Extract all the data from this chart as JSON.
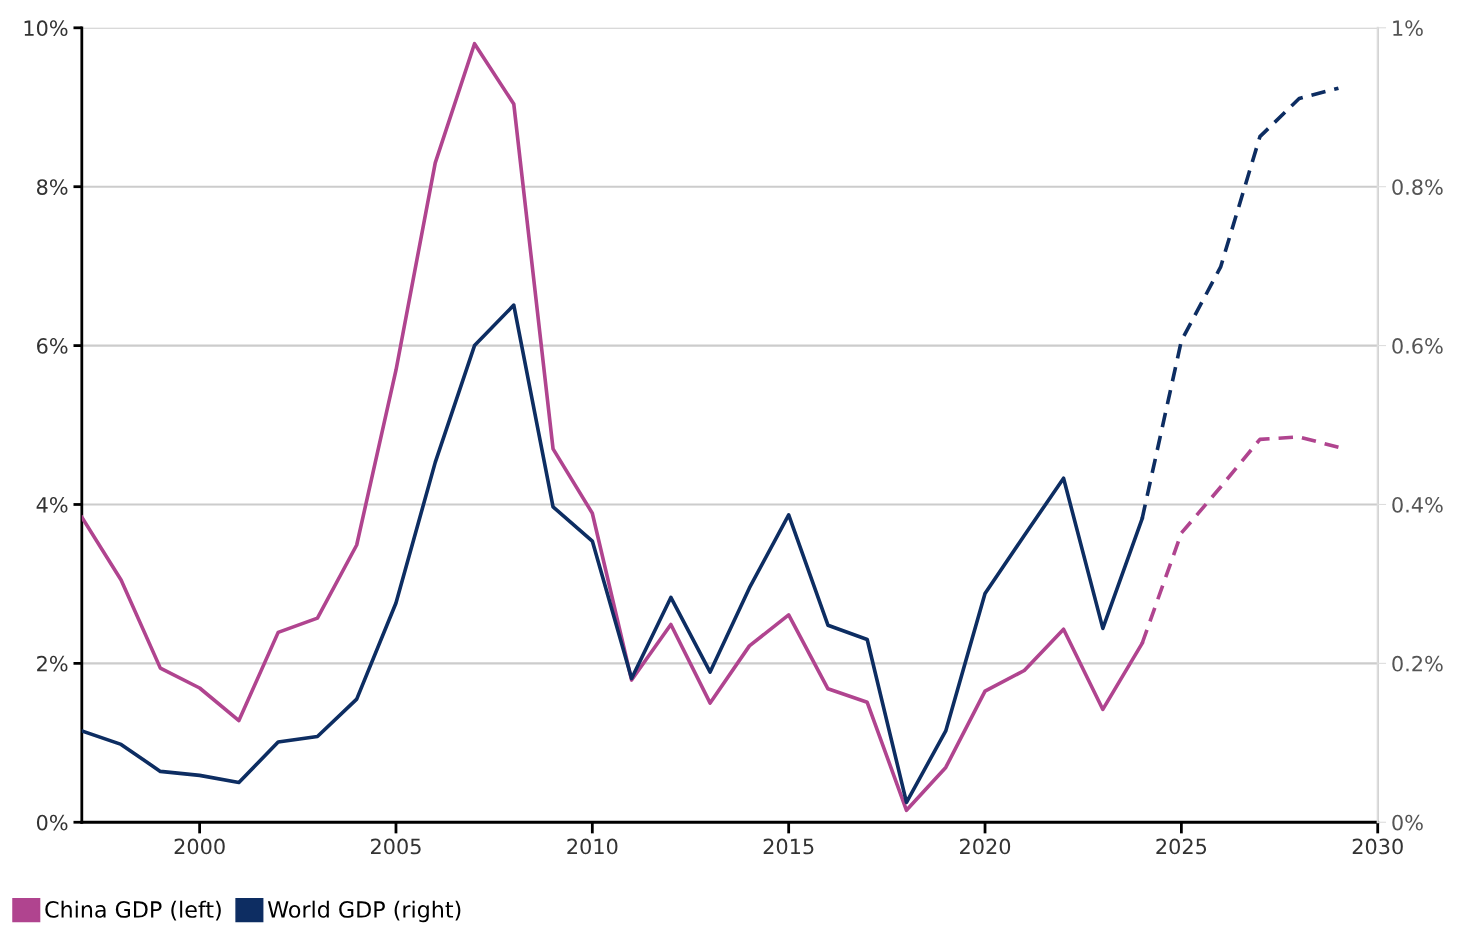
{
  "chart_data": {
    "type": "line",
    "xlim": [
      1997,
      2030
    ],
    "xticks": [
      2000,
      2005,
      2010,
      2015,
      2020,
      2025,
      2030
    ],
    "ylim": [
      0,
      10
    ],
    "yticks": [
      {
        "value": 0,
        "label": "0%"
      },
      {
        "value": 2,
        "label": "2%"
      },
      {
        "value": 4,
        "label": "4%"
      },
      {
        "value": 6,
        "label": "6%"
      },
      {
        "value": 8,
        "label": "8%"
      },
      {
        "value": 10,
        "label": "10%"
      }
    ],
    "y2lim": [
      0,
      1
    ],
    "y2ticks": [
      {
        "value": 0,
        "label": "0%"
      },
      {
        "value": 0.2,
        "label": "0.2%"
      },
      {
        "value": 0.4,
        "label": "0.4%"
      },
      {
        "value": 0.6,
        "label": "0.6%"
      },
      {
        "value": 0.8,
        "label": "0.8%"
      },
      {
        "value": 1,
        "label": "1%"
      }
    ],
    "grid": "y",
    "legend": "bottom left",
    "marker": "none",
    "series": [
      {
        "name": "China GDP (left)",
        "color": "#b0448f",
        "line_style": "solid",
        "x": [
          1997,
          1998,
          1999,
          2000,
          2001,
          2002,
          2003,
          2004,
          2005,
          2006,
          2007,
          2008,
          2009,
          2010,
          2011,
          2012,
          2013,
          2014,
          2015,
          2016,
          2017,
          2018,
          2019,
          2020,
          2021,
          2022,
          2023,
          2024
        ],
        "values": [
          3.84,
          3.05,
          1.94,
          1.69,
          1.28,
          2.39,
          2.57,
          3.49,
          5.69,
          8.3,
          9.8,
          9.04,
          4.7,
          3.89,
          1.79,
          2.49,
          1.5,
          2.22,
          2.61,
          1.68,
          1.51,
          0.15,
          0.69,
          1.65,
          1.91,
          2.43,
          1.42,
          2.25
        ]
      },
      {
        "color": "#b0448f",
        "line_style": "dashed",
        "x": [
          2024,
          2025,
          2026,
          2027,
          2028,
          2029
        ],
        "values": [
          2.25,
          3.64,
          4.22,
          4.82,
          4.85,
          4.72
        ]
      },
      {
        "name": "World GDP (right)",
        "color": "#0d2d62",
        "axis": "y2",
        "line_style": "solid",
        "x": [
          1997,
          1998,
          1999,
          2000,
          2001,
          2002,
          2003,
          2004,
          2005,
          2006,
          2007,
          2008,
          2009,
          2010,
          2011,
          2012,
          2013,
          2014,
          2015,
          2016,
          2017,
          2018,
          2019,
          2020,
          2021,
          2022,
          2023,
          2024
        ],
        "values": [
          0.115,
          0.098,
          0.064,
          0.059,
          0.05,
          0.101,
          0.108,
          0.155,
          0.276,
          0.453,
          0.6,
          0.651,
          0.397,
          0.354,
          0.181,
          0.283,
          0.189,
          0.295,
          0.387,
          0.248,
          0.23,
          0.025,
          0.115,
          0.288,
          0.361,
          0.433,
          0.244,
          0.382
        ]
      },
      {
        "color": "#0d2d62",
        "axis": "y2",
        "line_style": "dashed",
        "x": [
          2024,
          2025,
          2026,
          2027,
          2028,
          2029
        ],
        "values": [
          0.382,
          0.606,
          0.699,
          0.863,
          0.911,
          0.924
        ]
      }
    ]
  }
}
